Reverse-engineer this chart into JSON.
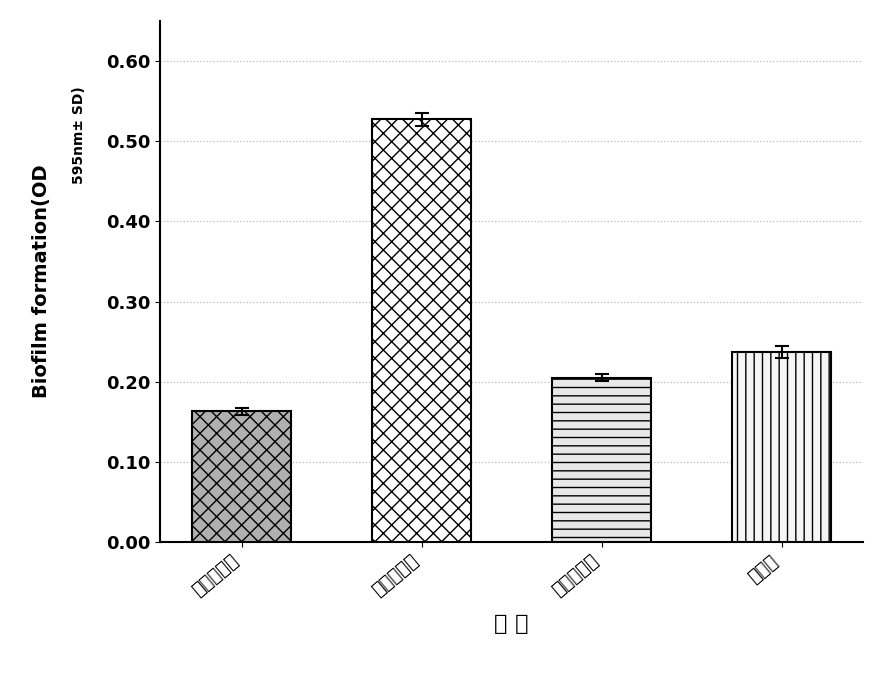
{
  "categories": [
    "空白对照组",
    "阴性对照组",
    "阳性对照组",
    "实验组"
  ],
  "values": [
    0.163,
    0.527,
    0.205,
    0.237
  ],
  "errors": [
    0.004,
    0.008,
    0.004,
    0.007
  ],
  "ylabel_main": "Biofilm formation(OD",
  "ylabel_sub": "595nm± SD)",
  "xlabel": "组 别",
  "ylim": [
    0.0,
    0.65
  ],
  "yticks": [
    0.0,
    0.1,
    0.2,
    0.3,
    0.4,
    0.5,
    0.6
  ],
  "bar_width": 0.55,
  "background_color": "#ffffff",
  "bar_edge_color": "#000000",
  "error_color": "#000000",
  "grid_color": "#bbbbbb",
  "label_fontsize": 14,
  "tick_fontsize": 13,
  "xlabel_fontsize": 16,
  "hatch_patterns": [
    "xx",
    "XX",
    "--",
    "||"
  ],
  "bar_facecolors": [
    "#b0b0b0",
    "#ffffff",
    "#e8e8e8",
    "#f5f5f5"
  ],
  "hatch_colors": [
    "#000000",
    "#000000",
    "#000000",
    "#000000"
  ]
}
